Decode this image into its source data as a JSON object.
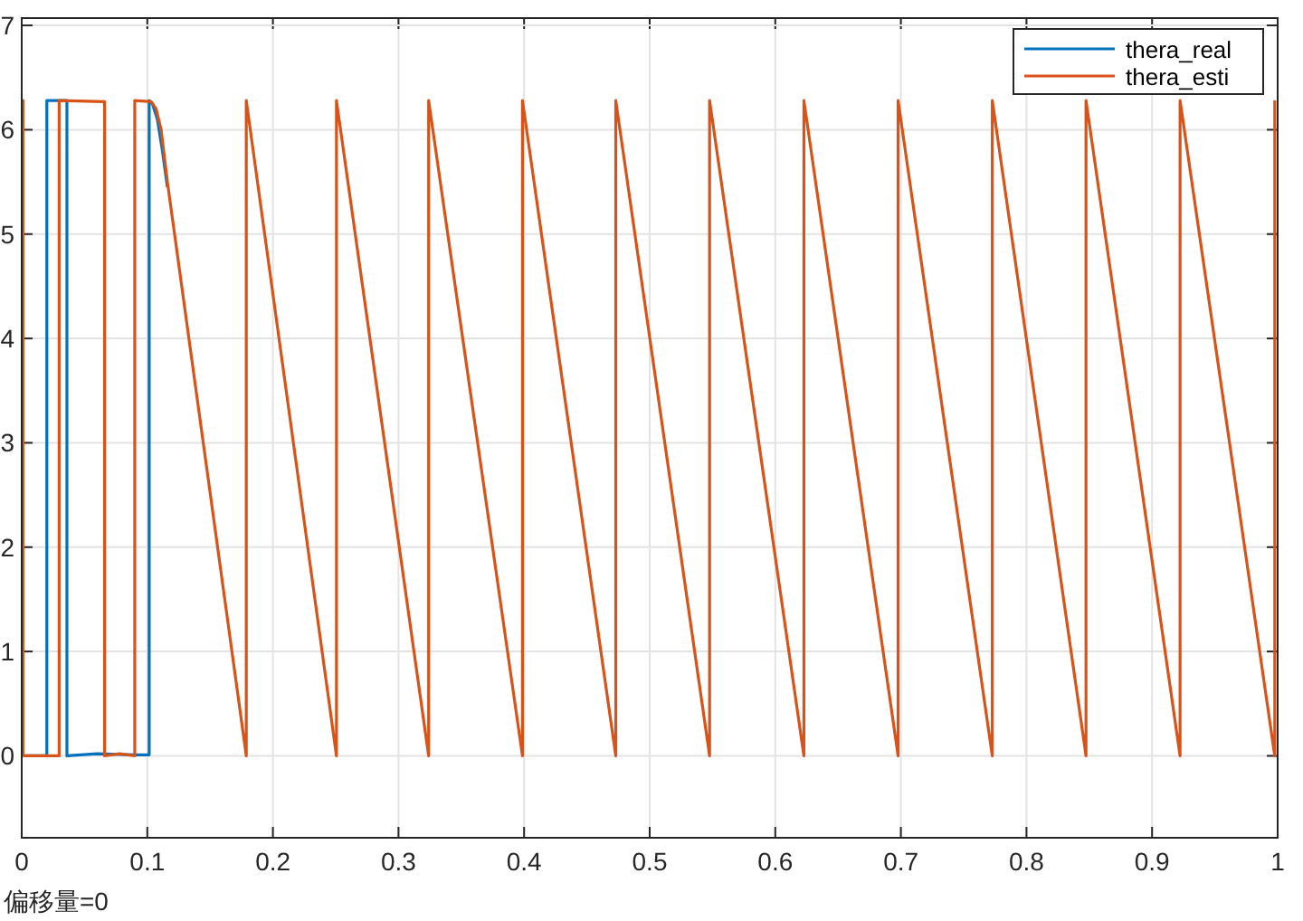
{
  "chart_data": {
    "type": "line",
    "xlim": [
      0,
      1
    ],
    "ylim": [
      -0.785,
      7.07
    ],
    "xticks": [
      0,
      0.1,
      0.2,
      0.3,
      0.4,
      0.5,
      0.6,
      0.7,
      0.8,
      0.9,
      1
    ],
    "yticks": [
      0,
      1,
      2,
      3,
      4,
      5,
      6,
      7
    ],
    "grid": true,
    "legend": "top right",
    "annotations": [
      "偏移量=0"
    ],
    "series": [
      {
        "name": "thera_real",
        "color": "#0072bd",
        "x": [
          0,
          0.02,
          0.02,
          0.036,
          0.036,
          0.06,
          0.09,
          0.1015,
          0.1015,
          0.104,
          0.108,
          0.112,
          0.116
        ],
        "values": [
          0,
          0,
          6.28,
          6.28,
          0,
          0.02,
          0.01,
          0.01,
          6.28,
          6.25,
          6.1,
          5.8,
          5.45
        ]
      },
      {
        "name": "thera_esti",
        "color": "#d95319",
        "x": [
          0,
          0.001,
          0.001,
          0.0298,
          0.0298,
          0.066,
          0.066,
          0.078,
          0.09,
          0.09,
          0.103,
          0.107,
          0.111,
          0.116,
          0.1788,
          0.1788,
          0.2506,
          0.2506,
          0.324,
          0.324,
          0.3987,
          0.3987,
          0.473,
          0.473,
          0.5477,
          0.5477,
          0.6228,
          0.6228,
          0.6978,
          0.6978,
          0.7728,
          0.7728,
          0.8474,
          0.8474,
          0.9223,
          0.9223,
          0.9977,
          0.9977
        ],
        "values": [
          6.28,
          6.28,
          0,
          0,
          6.28,
          6.27,
          0,
          0.02,
          0,
          6.28,
          6.27,
          6.2,
          6.0,
          5.5,
          0,
          6.28,
          0,
          6.28,
          0,
          6.28,
          0,
          6.28,
          0,
          6.28,
          0,
          6.28,
          0,
          6.28,
          0,
          6.28,
          0,
          6.28,
          0,
          6.28,
          0,
          6.28,
          0,
          6.28
        ]
      }
    ]
  }
}
